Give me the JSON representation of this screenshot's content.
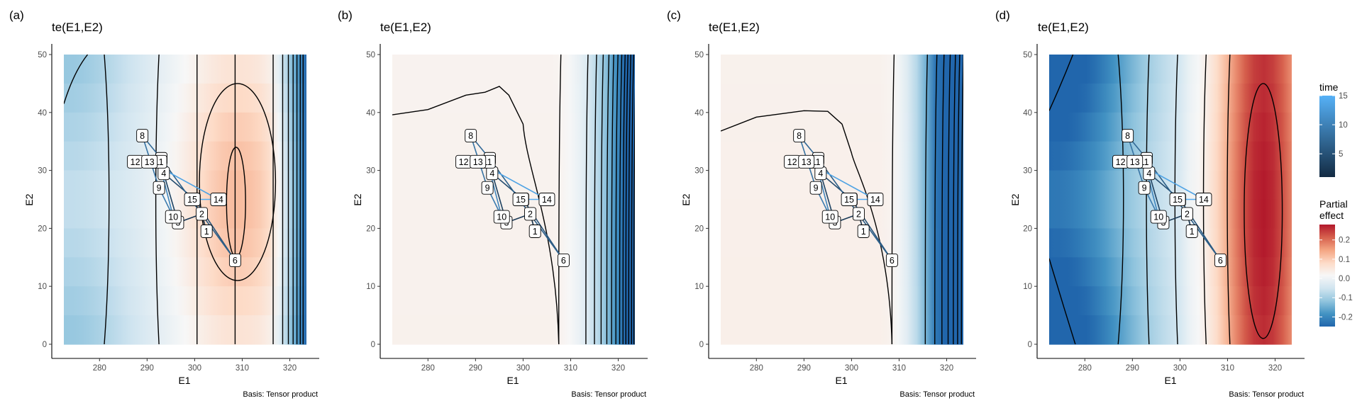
{
  "chart_data": [
    {
      "type": "heatmap",
      "panel_tag": "(a)",
      "title": "te(E1,E2)",
      "xlabel": "E1",
      "ylabel": "E2",
      "caption": "Basis: Tensor product",
      "xlim": [
        272.5,
        323.5
      ],
      "ylim": [
        0,
        50
      ],
      "xticks": [
        280,
        290,
        300,
        310,
        320
      ],
      "yticks": [
        0,
        10,
        20,
        30,
        40,
        50
      ],
      "fill_range": [
        -0.1,
        0.14
      ],
      "surface": "hump centred near E1 309, E2 25; right edge falls steeply",
      "contour_e1": [
        281,
        292.5,
        300.5,
        308.5,
        316.5,
        318.5,
        319.7,
        320.7,
        321.5,
        322.2,
        322.8
      ],
      "contour_closed": [
        {
          "center": [
            309,
            28
          ],
          "rx": 8,
          "ry": 17
        },
        {
          "center": [
            308.7,
            24.5
          ],
          "rx": 2,
          "ry": 9.5
        }
      ],
      "contour_top": {
        "y_at_left": 41.5,
        "x_at_top": 277.5
      }
    },
    {
      "type": "heatmap",
      "panel_tag": "(b)",
      "title": "te(E1,E2)",
      "xlabel": "E1",
      "ylabel": "E2",
      "caption": "Basis: Tensor product",
      "xlim": [
        272.5,
        323.5
      ],
      "ylim": [
        0,
        50
      ],
      "xticks": [
        280,
        290,
        300,
        310,
        320
      ],
      "yticks": [
        0,
        10,
        20,
        30,
        40,
        50
      ],
      "fill_range": [
        -0.06,
        0.04
      ],
      "contour_e1": [
        307.5,
        313.2,
        315,
        316.4,
        317.6,
        318.6,
        319.5,
        320.3,
        321,
        321.6,
        322.2,
        322.8,
        323.3
      ],
      "contour_top_line": [
        [
          272.5,
          39.6
        ],
        [
          280,
          40.5
        ],
        [
          288,
          43
        ],
        [
          292,
          43.5
        ],
        [
          295,
          44.5
        ],
        [
          297,
          43
        ],
        [
          300,
          38
        ]
      ]
    },
    {
      "type": "heatmap",
      "panel_tag": "(c)",
      "title": "te(E1,E2)",
      "xlabel": "E1",
      "ylabel": "E2",
      "caption": "Basis: Tensor product",
      "xlim": [
        272.5,
        323.5
      ],
      "ylim": [
        0,
        50
      ],
      "xticks": [
        280,
        290,
        300,
        310,
        320
      ],
      "yticks": [
        0,
        10,
        20,
        30,
        40,
        50
      ],
      "fill_range": [
        -0.1,
        0.04
      ],
      "contour_e1": [
        308.5,
        315.5,
        317.5,
        319,
        320.3,
        321.4,
        322.3,
        323.1
      ],
      "contour_top_line": [
        [
          272.5,
          36.8
        ],
        [
          280,
          39.2
        ],
        [
          290,
          40.3
        ],
        [
          295,
          40.2
        ],
        [
          298,
          38
        ],
        [
          300,
          33
        ]
      ]
    },
    {
      "type": "heatmap",
      "panel_tag": "(d)",
      "title": "te(E1,E2)",
      "xlabel": "E1",
      "ylabel": "E2",
      "caption": "Basis: Tensor product",
      "xlim": [
        272.5,
        323.5
      ],
      "ylim": [
        0,
        50
      ],
      "xticks": [
        280,
        290,
        300,
        310,
        320
      ],
      "yticks": [
        0,
        10,
        20,
        30,
        40,
        50
      ],
      "fill_range": [
        -0.25,
        0.28
      ],
      "surface": "strong ridge near E1 317, low on both flanks",
      "contour_e1": [
        287,
        293.5,
        299.5,
        305.5,
        310.5
      ],
      "contour_closed": [
        {
          "center": [
            317.5,
            23
          ],
          "rx": 4,
          "ry": 22
        }
      ],
      "contour_corners": [
        {
          "from": [
            272.5,
            40.3
          ],
          "to": [
            277.5,
            50
          ]
        },
        {
          "from": [
            272.5,
            14.8
          ],
          "to": [
            278,
            0
          ]
        }
      ]
    }
  ],
  "observations": {
    "color_scale_name": "time",
    "points": [
      {
        "label": "1",
        "e1": 302.5,
        "e2": 19.5,
        "time": 1
      },
      {
        "label": "2",
        "e1": 301.5,
        "e2": 22.5,
        "time": 2
      },
      {
        "label": "3",
        "e1": 296.5,
        "e2": 21,
        "time": 3
      },
      {
        "label": "4",
        "e1": 293.5,
        "e2": 29.5,
        "time": 4
      },
      {
        "label": "5",
        "e1": 300,
        "e2": 25,
        "time": 5
      },
      {
        "label": "6",
        "e1": 308.5,
        "e2": 14.5,
        "time": 6
      },
      {
        "label": "7",
        "e1": 293,
        "e2": 32,
        "time": 7
      },
      {
        "label": "8",
        "e1": 289,
        "e2": 36,
        "time": 8
      },
      {
        "label": "9",
        "e1": 292.5,
        "e2": 27,
        "time": 9
      },
      {
        "label": "10",
        "e1": 295.5,
        "e2": 22,
        "time": 10
      },
      {
        "label": "11",
        "e1": 292.5,
        "e2": 31.5,
        "time": 11
      },
      {
        "label": "12",
        "e1": 287.5,
        "e2": 31.5,
        "time": 12
      },
      {
        "label": "13",
        "e1": 290.5,
        "e2": 31.5,
        "time": 13
      },
      {
        "label": "14",
        "e1": 305,
        "e2": 25,
        "time": 14
      },
      {
        "label": "15",
        "e1": 299.5,
        "e2": 25,
        "time": 15
      }
    ]
  },
  "legends": {
    "time": {
      "title": "time",
      "ticks": [
        5,
        10,
        15
      ],
      "range": [
        1,
        15
      ],
      "low_color": "#132b43",
      "high_color": "#56b1f7"
    },
    "partial": {
      "title_line1": "Partial",
      "title_line2": "effect",
      "ticks": [
        "0.2",
        "0.1",
        "0.0",
        "-0.1",
        "-0.2"
      ],
      "tick_values": [
        0.2,
        0.1,
        0.0,
        -0.1,
        -0.2
      ],
      "range": [
        -0.25,
        0.28
      ],
      "stops": [
        "#2166ac",
        "#4393c3",
        "#92c5de",
        "#d1e5f0",
        "#f7f7f7",
        "#fddbc7",
        "#f4a582",
        "#d6604d",
        "#b2182b"
      ]
    }
  }
}
